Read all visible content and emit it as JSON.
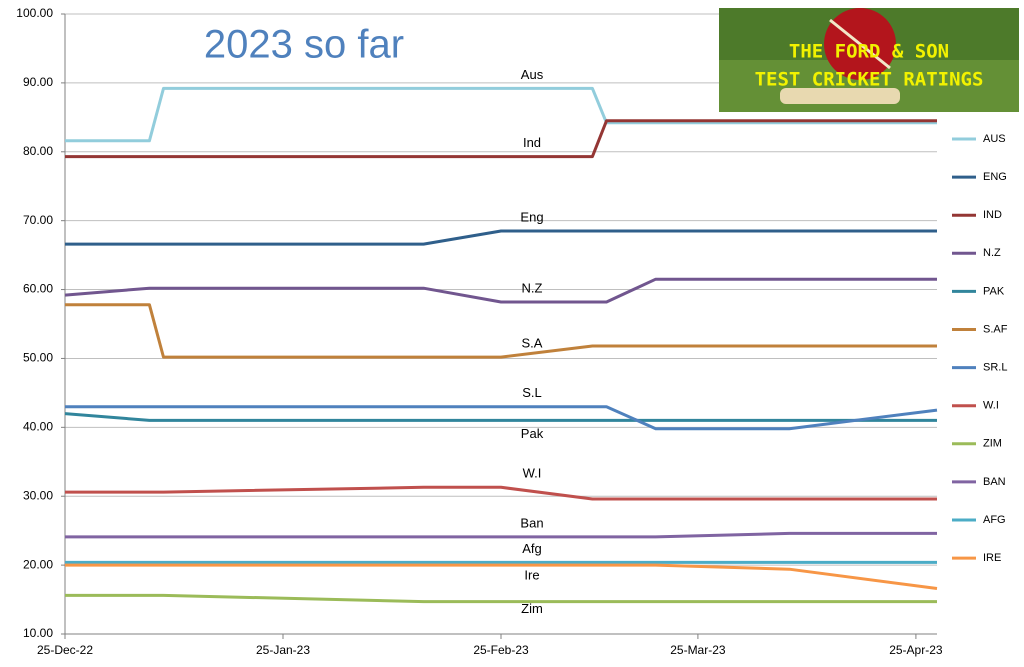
{
  "chart_data": {
    "type": "line",
    "title": "2023 so far",
    "logo": {
      "line1": "THE FORD & SON",
      "line2": "TEST CRICKET RATINGS"
    },
    "x": [
      "2022-12-25",
      "2023-01-06",
      "2023-01-08",
      "2023-02-14",
      "2023-02-25",
      "2023-03-10",
      "2023-03-12",
      "2023-03-19",
      "2023-04-07",
      "2023-04-28"
    ],
    "xlim": [
      "2022-12-25",
      "2023-04-28"
    ],
    "xticks": [
      {
        "value": "2022-12-25",
        "label": "25-Dec-22"
      },
      {
        "value": "2023-01-25",
        "label": "25-Jan-23"
      },
      {
        "value": "2023-02-25",
        "label": "25-Feb-23"
      },
      {
        "value": "2023-03-25",
        "label": "25-Mar-23"
      },
      {
        "value": "2023-04-25",
        "label": "25-Apr-23"
      }
    ],
    "ylim": [
      10,
      100
    ],
    "yticks": [
      {
        "value": 10,
        "label": "10.00"
      },
      {
        "value": 20,
        "label": "20.00"
      },
      {
        "value": 30,
        "label": "30.00"
      },
      {
        "value": 40,
        "label": "40.00"
      },
      {
        "value": 50,
        "label": "50.00"
      },
      {
        "value": 60,
        "label": "60.00"
      },
      {
        "value": 70,
        "label": "70.00"
      },
      {
        "value": 80,
        "label": "80.00"
      },
      {
        "value": 90,
        "label": "90.00"
      },
      {
        "value": 100,
        "label": "100.00"
      }
    ],
    "grid": true,
    "legend": "right",
    "series": [
      {
        "name": "AUS",
        "label": "Aus",
        "color": "#92cddc",
        "values": [
          81.6,
          81.6,
          89.2,
          89.2,
          89.2,
          89.2,
          84.2,
          84.2,
          84.2,
          84.2
        ]
      },
      {
        "name": "ENG",
        "label": "Eng",
        "color": "#2f5f8b",
        "values": [
          66.6,
          66.6,
          66.6,
          66.6,
          68.5,
          68.5,
          68.5,
          68.5,
          68.5,
          68.5
        ]
      },
      {
        "name": "IND",
        "label": "Ind",
        "color": "#943634",
        "values": [
          79.3,
          79.3,
          79.3,
          79.3,
          79.3,
          79.3,
          84.5,
          84.5,
          84.5,
          84.5
        ]
      },
      {
        "name": "N.Z",
        "label": "N.Z",
        "color": "#71568f",
        "values": [
          59.2,
          60.2,
          60.2,
          60.2,
          58.2,
          58.2,
          58.2,
          61.5,
          61.5,
          61.5
        ]
      },
      {
        "name": "PAK",
        "label": "Pak",
        "color": "#31859c",
        "values": [
          42.0,
          41.0,
          41.0,
          41.0,
          41.0,
          41.0,
          41.0,
          41.0,
          41.0,
          41.0
        ]
      },
      {
        "name": "S.AF",
        "label": "S.A",
        "color": "#c0813b",
        "values": [
          57.8,
          57.8,
          50.2,
          50.2,
          50.2,
          51.8,
          51.8,
          51.8,
          51.8,
          51.8
        ]
      },
      {
        "name": "SR.L",
        "label": "S.L",
        "color": "#4f81bd",
        "values": [
          43.0,
          43.0,
          43.0,
          43.0,
          43.0,
          43.0,
          43.0,
          39.8,
          39.8,
          42.5
        ]
      },
      {
        "name": "W.I",
        "label": "W.I",
        "color": "#c0504d",
        "values": [
          30.6,
          30.6,
          30.6,
          31.3,
          31.3,
          29.6,
          29.6,
          29.6,
          29.6,
          29.6
        ]
      },
      {
        "name": "ZIM",
        "label": "Zim",
        "color": "#9bbb59",
        "values": [
          15.6,
          15.6,
          15.6,
          14.7,
          14.7,
          14.7,
          14.7,
          14.7,
          14.7,
          14.7
        ]
      },
      {
        "name": "BAN",
        "label": "Ban",
        "color": "#8064a2",
        "values": [
          24.1,
          24.1,
          24.1,
          24.1,
          24.1,
          24.1,
          24.1,
          24.1,
          24.6,
          24.6
        ]
      },
      {
        "name": "AFG",
        "label": "Afg",
        "color": "#4bacc6",
        "values": [
          20.4,
          20.4,
          20.4,
          20.4,
          20.4,
          20.4,
          20.4,
          20.4,
          20.4,
          20.4
        ]
      },
      {
        "name": "IRE",
        "label": "Ire",
        "color": "#f79646",
        "values": [
          20.0,
          20.0,
          20.0,
          20.0,
          20.0,
          20.0,
          20.0,
          20.0,
          19.4,
          16.6
        ]
      }
    ]
  }
}
